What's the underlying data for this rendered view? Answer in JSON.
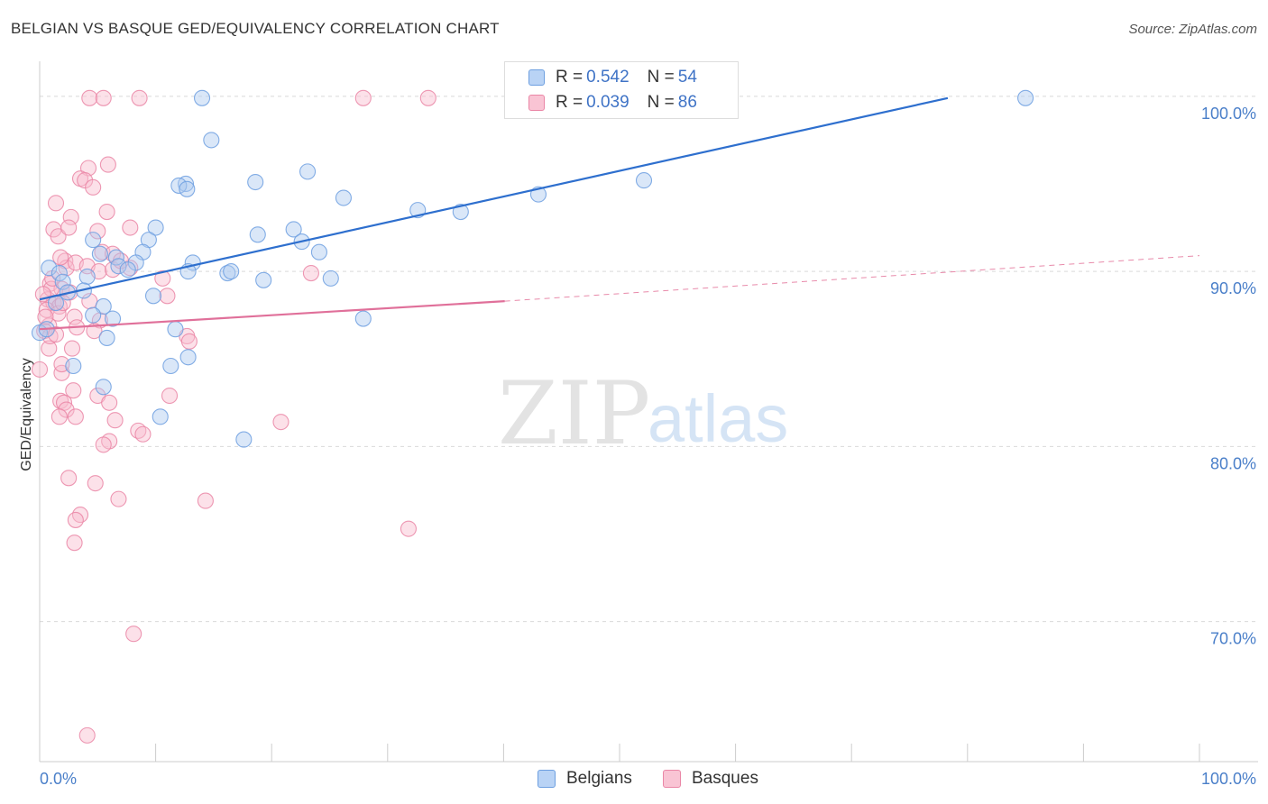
{
  "header": {
    "title": "BELGIAN VS BASQUE GED/EQUIVALENCY CORRELATION CHART",
    "source": "Source: ZipAtlas.com"
  },
  "watermark": {
    "zip": "ZIP",
    "atlas": "atlas"
  },
  "legend": {
    "rows": [
      {
        "r_label": "R = ",
        "r_value": "0.542",
        "n_label": "N = ",
        "n_value": "54",
        "color": "#6d9fe0"
      },
      {
        "r_label": "R = ",
        "r_value": "0.039",
        "n_label": "N = ",
        "n_value": "86",
        "color": "#ea86a6"
      }
    ]
  },
  "bottom_legend": [
    {
      "label": "Belgians",
      "color": "#6d9fe0"
    },
    {
      "label": "Basques",
      "color": "#ea86a6"
    }
  ],
  "chart_data": {
    "type": "scatter",
    "title": "BELGIAN VS BASQUE GED/EQUIVALENCY CORRELATION CHART",
    "xlabel": "",
    "ylabel": "GED/Equivalency",
    "xlim": [
      0,
      100
    ],
    "ylim": [
      62,
      102
    ],
    "x_tick_labels": [
      "0.0%",
      "100.0%"
    ],
    "y_ticks": [
      70,
      80,
      90,
      100
    ],
    "y_tick_labels": [
      "70.0%",
      "80.0%",
      "90.0%",
      "100.0%"
    ],
    "grid": true,
    "legend_position": "top-center",
    "series": [
      {
        "name": "Belgians",
        "color": "#6d9fe0",
        "trend": {
          "x": [
            0,
            78.3
          ],
          "y": [
            88.4,
            99.9
          ]
        },
        "points": [
          [
            14,
            99.9
          ],
          [
            85,
            99.9
          ],
          [
            14.8,
            97.5
          ],
          [
            23.1,
            95.7
          ],
          [
            12.6,
            95
          ],
          [
            18.6,
            95.1
          ],
          [
            12.0,
            94.9
          ],
          [
            12.7,
            94.7
          ],
          [
            26.2,
            94.2
          ],
          [
            43.0,
            94.4
          ],
          [
            52.1,
            95.2
          ],
          [
            32.6,
            93.5
          ],
          [
            36.3,
            93.4
          ],
          [
            10.0,
            92.5
          ],
          [
            18.8,
            92.1
          ],
          [
            21.9,
            92.4
          ],
          [
            4.6,
            91.8
          ],
          [
            9.4,
            91.8
          ],
          [
            22.6,
            91.7
          ],
          [
            8.9,
            91.1
          ],
          [
            24.1,
            91.1
          ],
          [
            5.2,
            91.0
          ],
          [
            6.6,
            90.8
          ],
          [
            6.8,
            90.3
          ],
          [
            8.3,
            90.5
          ],
          [
            13.2,
            90.5
          ],
          [
            0.8,
            90.2
          ],
          [
            1.7,
            89.9
          ],
          [
            7.6,
            90.1
          ],
          [
            12.8,
            90.0
          ],
          [
            16.2,
            89.9
          ],
          [
            4.1,
            89.7
          ],
          [
            16.5,
            90.0
          ],
          [
            19.3,
            89.5
          ],
          [
            25.1,
            89.6
          ],
          [
            2.0,
            89.4
          ],
          [
            3.8,
            88.9
          ],
          [
            9.8,
            88.6
          ],
          [
            5.5,
            88.0
          ],
          [
            4.6,
            87.5
          ],
          [
            6.3,
            87.3
          ],
          [
            27.9,
            87.3
          ],
          [
            11.7,
            86.7
          ],
          [
            0,
            86.5
          ],
          [
            5.8,
            86.2
          ],
          [
            12.8,
            85.1
          ],
          [
            2.9,
            84.6
          ],
          [
            11.3,
            84.6
          ],
          [
            5.5,
            83.4
          ],
          [
            10.4,
            81.7
          ],
          [
            17.6,
            80.4
          ],
          [
            1.4,
            88.2
          ],
          [
            2.4,
            88.8
          ],
          [
            0.6,
            86.7
          ]
        ]
      },
      {
        "name": "Basques",
        "color": "#ea86a6",
        "trend": {
          "x": [
            0,
            40.1
          ],
          "y": [
            86.7,
            88.3
          ]
        },
        "trend_extension": {
          "x": [
            40.1,
            100
          ],
          "y": [
            88.3,
            90.9
          ]
        },
        "points": [
          [
            4.3,
            99.9
          ],
          [
            5.5,
            99.9
          ],
          [
            8.6,
            99.9
          ],
          [
            27.9,
            99.9
          ],
          [
            33.5,
            99.9
          ],
          [
            5.9,
            96.1
          ],
          [
            4.2,
            95.9
          ],
          [
            3.5,
            95.3
          ],
          [
            3.9,
            95.2
          ],
          [
            4.6,
            94.8
          ],
          [
            1.4,
            93.9
          ],
          [
            5.8,
            93.4
          ],
          [
            2.7,
            93.1
          ],
          [
            1.2,
            92.4
          ],
          [
            1.6,
            92.0
          ],
          [
            7.8,
            92.5
          ],
          [
            5.0,
            92.3
          ],
          [
            2.5,
            92.5
          ],
          [
            5.4,
            91.1
          ],
          [
            6.3,
            91.0
          ],
          [
            2.2,
            90.6
          ],
          [
            2.3,
            90.2
          ],
          [
            3.1,
            90.5
          ],
          [
            1.8,
            90.8
          ],
          [
            4.1,
            90.3
          ],
          [
            5.1,
            90.0
          ],
          [
            7.8,
            90.2
          ],
          [
            10.6,
            89.6
          ],
          [
            23.4,
            89.9
          ],
          [
            6.3,
            90.1
          ],
          [
            0.9,
            89.3
          ],
          [
            1.9,
            89.0
          ],
          [
            2.6,
            88.8
          ],
          [
            0.7,
            88.4
          ],
          [
            1.2,
            88.2
          ],
          [
            1.7,
            88.0
          ],
          [
            0.6,
            87.8
          ],
          [
            4.3,
            88.3
          ],
          [
            11.0,
            88.6
          ],
          [
            1.6,
            87.6
          ],
          [
            3.0,
            87.4
          ],
          [
            5.2,
            87.2
          ],
          [
            0.8,
            86.9
          ],
          [
            0.4,
            86.6
          ],
          [
            4.7,
            86.6
          ],
          [
            12.7,
            86.3
          ],
          [
            12.9,
            86.0
          ],
          [
            0.8,
            85.6
          ],
          [
            0.0,
            84.4
          ],
          [
            1.9,
            84.2
          ],
          [
            1.9,
            84.7
          ],
          [
            2.9,
            83.2
          ],
          [
            5.0,
            82.9
          ],
          [
            11.2,
            82.9
          ],
          [
            1.8,
            82.6
          ],
          [
            2.1,
            82.5
          ],
          [
            6.0,
            82.5
          ],
          [
            2.3,
            82.1
          ],
          [
            3.1,
            81.7
          ],
          [
            1.7,
            81.7
          ],
          [
            6.5,
            81.5
          ],
          [
            20.8,
            81.4
          ],
          [
            8.5,
            80.9
          ],
          [
            8.9,
            80.7
          ],
          [
            6.0,
            80.3
          ],
          [
            5.5,
            80.1
          ],
          [
            2.5,
            78.2
          ],
          [
            4.8,
            77.9
          ],
          [
            6.8,
            77.0
          ],
          [
            14.3,
            76.9
          ],
          [
            3.5,
            76.1
          ],
          [
            3.1,
            75.8
          ],
          [
            31.8,
            75.3
          ],
          [
            3.0,
            74.5
          ],
          [
            8.1,
            69.3
          ],
          [
            4.1,
            63.5
          ],
          [
            0.9,
            86.3
          ],
          [
            1.0,
            89.0
          ],
          [
            0.5,
            87.4
          ],
          [
            2.0,
            88.2
          ],
          [
            1.4,
            86.4
          ],
          [
            3.2,
            86.8
          ],
          [
            0.3,
            88.7
          ],
          [
            7.0,
            90.6
          ],
          [
            1.1,
            89.6
          ],
          [
            2.8,
            85.6
          ]
        ]
      }
    ]
  }
}
